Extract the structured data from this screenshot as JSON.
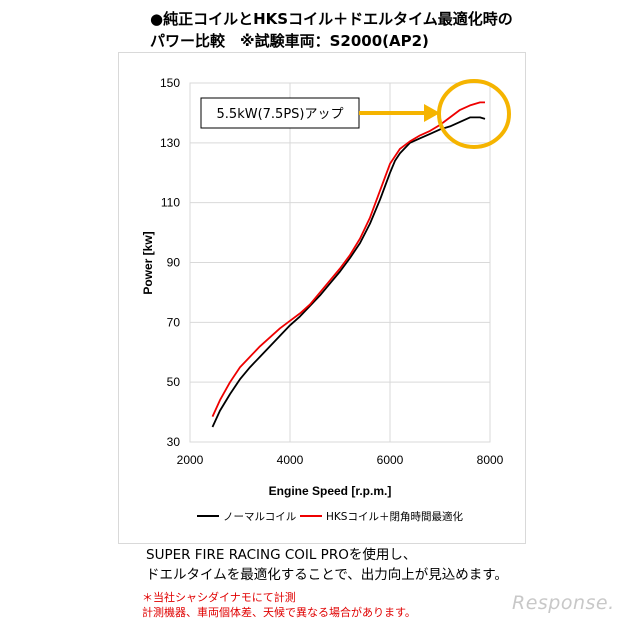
{
  "title": {
    "line1": "●純正コイルとHKSコイル＋ドエルタイム最適化時の",
    "line2": "パワー比較　※試験車両：S2000(AP2)"
  },
  "chart_data": {
    "type": "line",
    "xlabel": "Engine Speed [r.p.m.]",
    "ylabel": "Power [kw]",
    "xlim": [
      2000,
      8000
    ],
    "ylim": [
      30,
      150
    ],
    "xticks": [
      2000,
      4000,
      6000,
      8000
    ],
    "yticks": [
      30,
      50,
      70,
      90,
      110,
      130,
      150
    ],
    "grid": true,
    "legend_position": "bottom",
    "annotation": "5.5kW(7.5PS)アップ",
    "series": [
      {
        "name": "ノーマルコイル",
        "color": "#000000",
        "x": [
          2450,
          2600,
          2800,
          3000,
          3200,
          3400,
          3600,
          3800,
          4000,
          4200,
          4400,
          4600,
          4800,
          5000,
          5200,
          5400,
          5600,
          5800,
          6000,
          6100,
          6200,
          6400,
          6600,
          6800,
          7000,
          7200,
          7400,
          7600,
          7800,
          7900
        ],
        "y": [
          35,
          40.5,
          46,
          51,
          55,
          58.5,
          62,
          65.5,
          69,
          72,
          75.5,
          79,
          83,
          87,
          91.5,
          96.5,
          103,
          111,
          120,
          124,
          126.5,
          130,
          131.5,
          133,
          134.5,
          135.5,
          137,
          138.5,
          138.5,
          138
        ]
      },
      {
        "name": "HKSコイル＋閉角時間最適化",
        "color": "#ee0000",
        "x": [
          2450,
          2600,
          2800,
          3000,
          3200,
          3400,
          3600,
          3800,
          4000,
          4200,
          4400,
          4600,
          4800,
          5000,
          5200,
          5400,
          5600,
          5800,
          6000,
          6200,
          6400,
          6600,
          6800,
          7000,
          7200,
          7400,
          7600,
          7800,
          7900
        ],
        "y": [
          38.5,
          44,
          50,
          55,
          58.5,
          62,
          65,
          68,
          70.5,
          73,
          76,
          80,
          84,
          88,
          92.5,
          98,
          105,
          114,
          123,
          128,
          130.5,
          132.5,
          134,
          136,
          138.5,
          141,
          142.5,
          143.5,
          143.5
        ]
      }
    ]
  },
  "description": {
    "line1": "SUPER FIRE RACING COIL PROを使用し、",
    "line2": "ドエルタイムを最適化することで、出力向上が見込めます。"
  },
  "note": {
    "line1": "＊当社シャシダイナモにて計測",
    "line2": "計測機器、車両個体差、天候で異なる場合があります。"
  },
  "watermark": "Response."
}
